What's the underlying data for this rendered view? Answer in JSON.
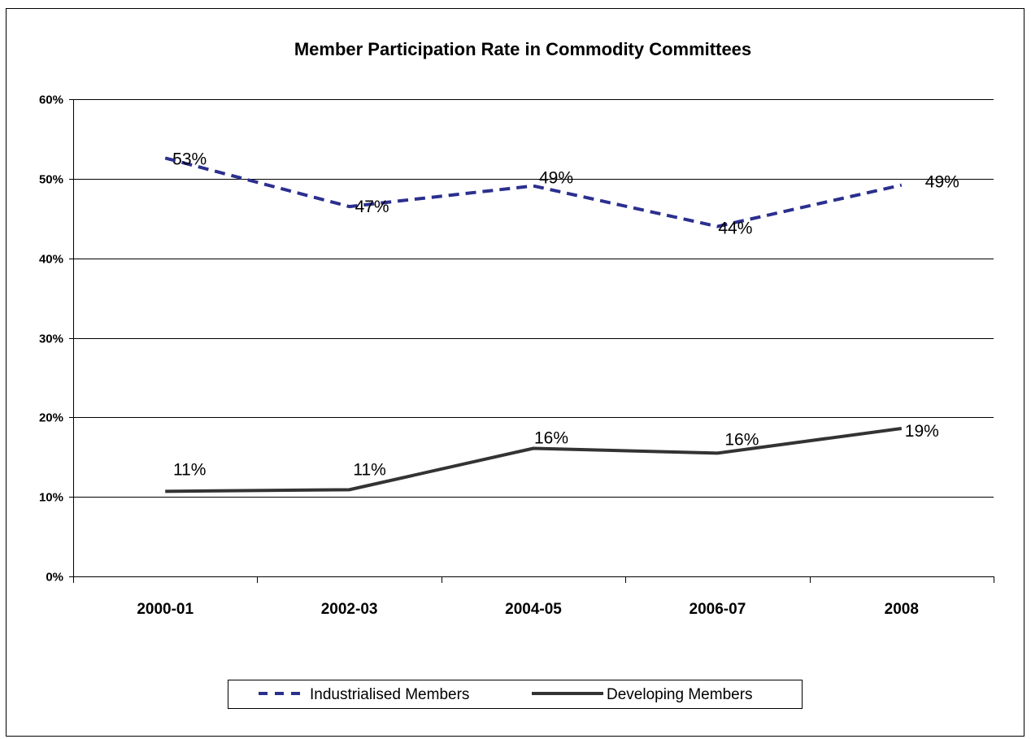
{
  "chart_data": {
    "type": "line",
    "title": "Member Participation Rate in Commodity Committees",
    "xlabel": "",
    "ylabel": "",
    "categories": [
      "2000-01",
      "2002-03",
      "2004-05",
      "2006-07",
      "2008"
    ],
    "ylim": [
      0,
      0.6
    ],
    "yticks": [
      0,
      0.1,
      0.2,
      0.3,
      0.4,
      0.5,
      0.6
    ],
    "ytick_labels": [
      "0%",
      "10%",
      "20%",
      "30%",
      "40%",
      "50%",
      "60%"
    ],
    "grid": true,
    "legend_position": "bottom",
    "series": [
      {
        "name": "Industrialised Members",
        "values": [
          0.526,
          0.465,
          0.491,
          0.44,
          0.492
        ],
        "data_labels": [
          "53%",
          "47%",
          "49%",
          "44%",
          "49%"
        ],
        "color": "#2b2f8e",
        "style": "dashed"
      },
      {
        "name": "Developing Members",
        "values": [
          0.107,
          0.109,
          0.161,
          0.155,
          0.186
        ],
        "data_labels": [
          "11%",
          "11%",
          "16%",
          "16%",
          "19%"
        ],
        "color": "#333333",
        "style": "solid"
      }
    ]
  }
}
